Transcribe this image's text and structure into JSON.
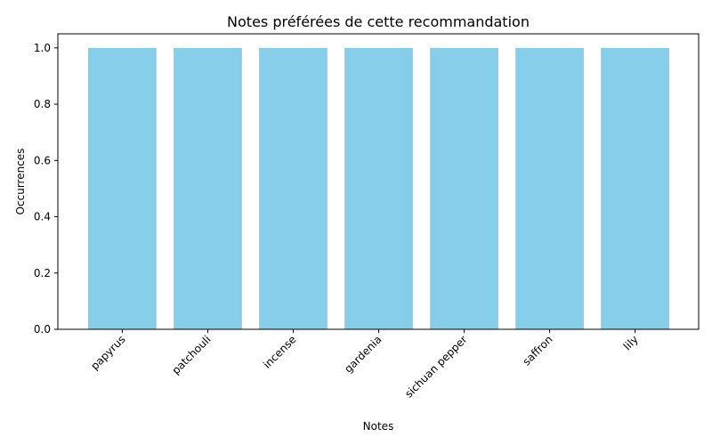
{
  "chart_data": {
    "type": "bar",
    "title": "Notes préférées de cette recommandation",
    "xlabel": "Notes",
    "ylabel": "Occurrences",
    "categories": [
      "papyrus",
      "patchouli",
      "incense",
      "gardenia",
      "sichuan pepper",
      "saffron",
      "lily"
    ],
    "values": [
      1,
      1,
      1,
      1,
      1,
      1,
      1
    ],
    "ylim": [
      0,
      1.05
    ],
    "yticks": [
      "0.0",
      "0.2",
      "0.4",
      "0.6",
      "0.8",
      "1.0"
    ],
    "bar_color": "#87CEEB",
    "grid": false,
    "legend": "none"
  }
}
